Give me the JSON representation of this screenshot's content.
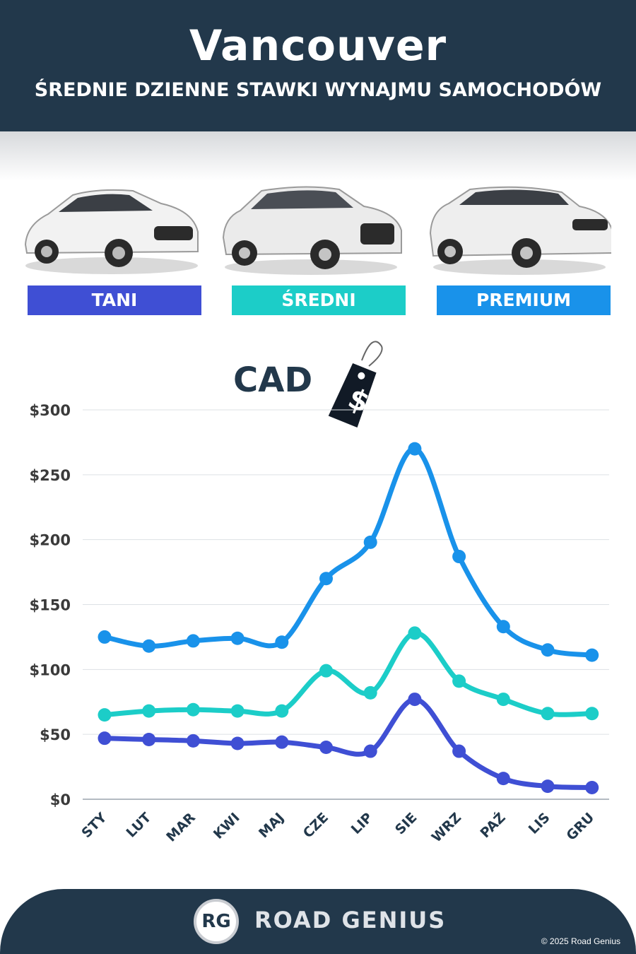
{
  "header": {
    "title": "Vancouver",
    "subtitle": "ŚREDNIE DZIENNE STAWKI WYNAJMU SAMOCHODÓW"
  },
  "categories": [
    {
      "label": "TANI",
      "color": "#3f4fd4"
    },
    {
      "label": "ŚREDNI",
      "color": "#1ccdc8"
    },
    {
      "label": "PREMIUM",
      "color": "#1992ea"
    }
  ],
  "currency": {
    "label": "CAD",
    "symbol": "$"
  },
  "chart_data": {
    "type": "line",
    "categories": [
      "STY",
      "LUT",
      "MAR",
      "KWI",
      "MAJ",
      "CZE",
      "LIP",
      "SIE",
      "WRZ",
      "PAŹ",
      "LIS",
      "GRU"
    ],
    "series": [
      {
        "name": "PREMIUM",
        "color": "#1992ea",
        "values": [
          125,
          118,
          122,
          124,
          121,
          170,
          198,
          270,
          187,
          133,
          115,
          111
        ]
      },
      {
        "name": "ŚREDNI",
        "color": "#1ccdc8",
        "values": [
          65,
          68,
          69,
          68,
          68,
          99,
          82,
          128,
          91,
          77,
          66,
          66
        ]
      },
      {
        "name": "TANI",
        "color": "#3f4fd4",
        "values": [
          47,
          46,
          45,
          43,
          44,
          40,
          37,
          77,
          37,
          16,
          10,
          9
        ]
      }
    ],
    "ylim": [
      0,
      300
    ],
    "yticks": [
      "$0",
      "$50",
      "$100",
      "$150",
      "$200",
      "$250",
      "$300"
    ],
    "grid": true
  },
  "footer": {
    "logo": "RG",
    "brand": "ROAD GENIUS",
    "copyright": "© 2025 Road Genius"
  }
}
